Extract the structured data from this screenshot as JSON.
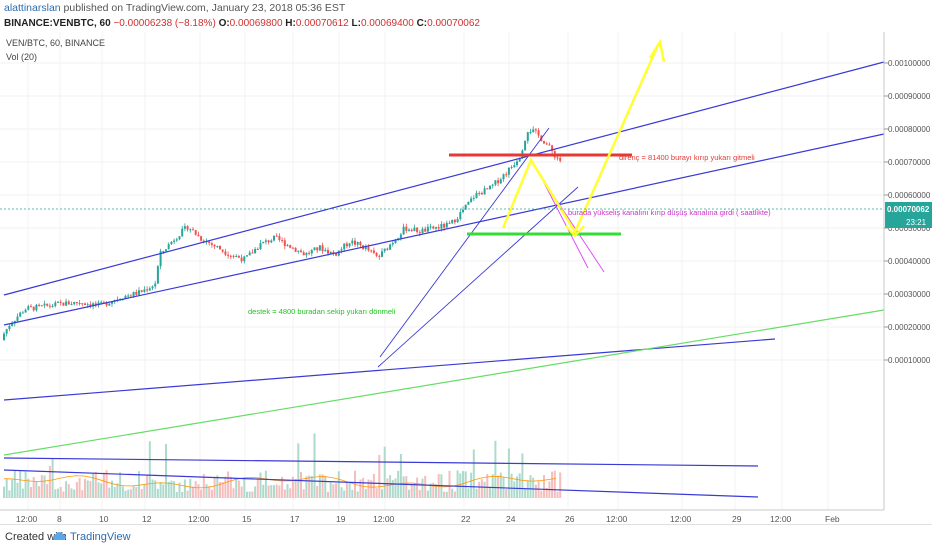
{
  "header": {
    "user": "alattinarslan",
    "published_text": "published on TradingView.com, January 23, 2018 05:36 EST",
    "symbol_line": "BINANCE:VENBTC, 60",
    "change": "−0.00006238 (−8.18%)",
    "o_label": "O:",
    "o_value": "0.00069800",
    "h_label": "H:",
    "h_value": "0.00070612",
    "l_label": "L:",
    "l_value": "0.00069400",
    "c_label": "C:",
    "c_value": "0.00070062"
  },
  "legend": {
    "symbol": "VEN/BTC, 60, BINANCE",
    "volume": "Vol (20)"
  },
  "footer": {
    "created_with": "Created with",
    "brand": "TradingView"
  },
  "chart_data": {
    "type": "candlestick",
    "price_axis": {
      "ticks": [
        "0.00100000",
        "0.00090000",
        "0.00080000",
        "0.00070000",
        "0.00060000",
        "0.00050000",
        "0.00040000",
        "0.00030000",
        "0.00020000",
        "0.00010000"
      ],
      "tick_values": [
        0.001,
        0.0009,
        0.0008,
        0.0007,
        0.0006,
        0.0005,
        0.0004,
        0.0003,
        0.0002,
        0.0001
      ],
      "last_price": "0.00070062",
      "countdown": "23:21"
    },
    "time_axis": {
      "ticks": [
        "12:00",
        "8",
        "10",
        "12",
        "12:00",
        "15",
        "17",
        "19",
        "12:00",
        "22",
        "24",
        "26",
        "12:00",
        "12:00",
        "29",
        "12:00",
        "Feb"
      ]
    },
    "annotations": {
      "resistance_text": "direnç = 81400 burayı kırıp yukarı gitmeli",
      "support_text": "destek = 4800 buradan sekip yukarı dönmeli",
      "channel_text": "burada yükseliş kanalını kırıp düşüş kanalına girdi ( saatlikte)"
    },
    "colors": {
      "up": "#26a69a",
      "down": "#ef5350",
      "resistance": "#e53935",
      "support": "#33dd33",
      "channel": "#3a3ad6",
      "arrow": "#ffff33",
      "pink": "#e040fb",
      "green_trend": "#66dd66"
    }
  }
}
